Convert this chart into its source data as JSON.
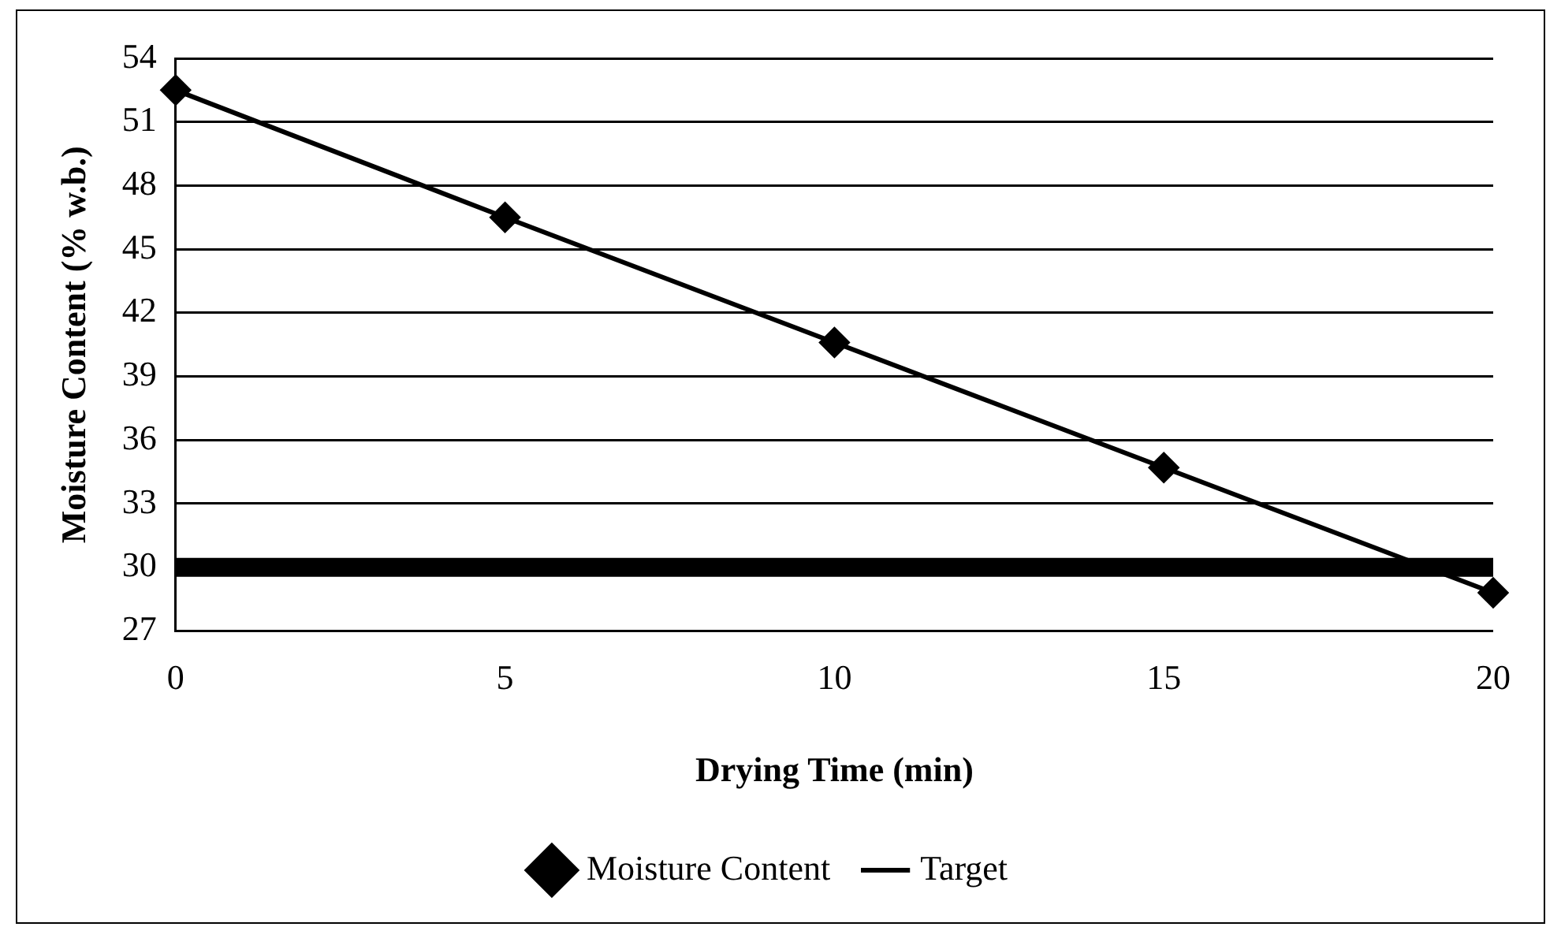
{
  "chart_data": {
    "type": "line",
    "xlabel": "Drying Time (min)",
    "ylabel": "Moisture Content (% w.b.)",
    "categories": [
      "0",
      "5",
      "10",
      "15",
      "20"
    ],
    "series": [
      {
        "name": "Moisture Content",
        "color": "#000000",
        "values": [
          52.5,
          46.5,
          40.6,
          34.7,
          28.8
        ],
        "marker": "diamond"
      },
      {
        "name": "Target",
        "color": "#000000",
        "values": [
          30,
          30,
          30,
          30,
          30
        ],
        "marker": "none"
      }
    ],
    "ylim": [
      27,
      54
    ],
    "yticks": [
      27,
      30,
      33,
      36,
      39,
      42,
      45,
      48,
      51,
      54
    ],
    "grid": "y",
    "legend": "bottom"
  }
}
